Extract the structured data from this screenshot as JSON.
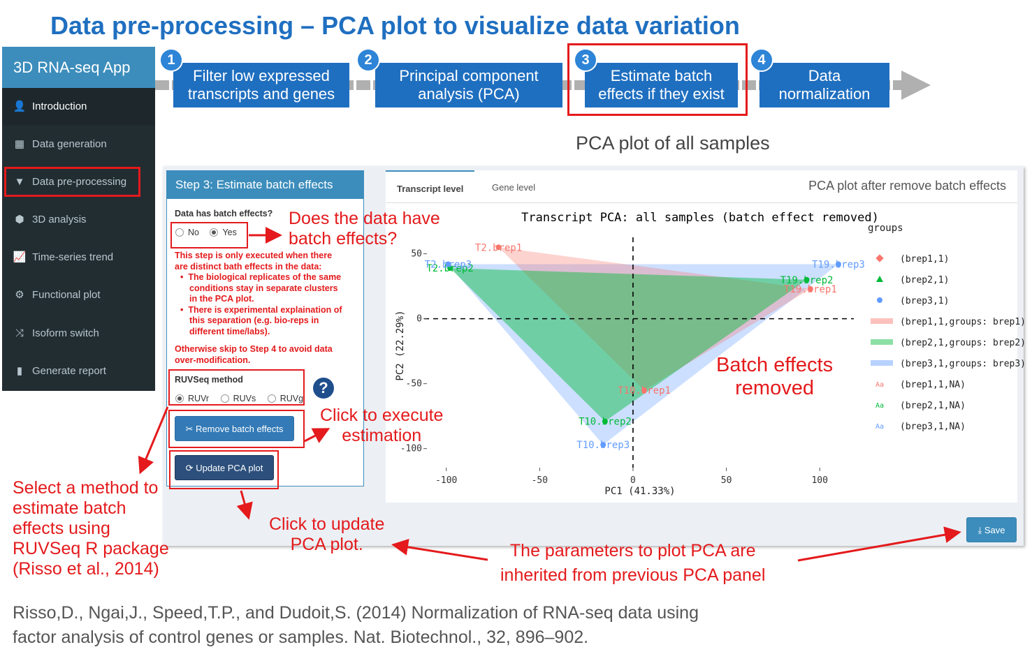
{
  "title": "Data pre-processing – PCA plot to visualize data variation",
  "sidebar": {
    "header": "3D RNA-seq App",
    "items": [
      {
        "label": "Introduction",
        "icon": "user-icon",
        "glyph": "👤"
      },
      {
        "label": "Data generation",
        "icon": "table-icon",
        "glyph": "▦"
      },
      {
        "label": "Data pre-processing",
        "icon": "filter-icon",
        "glyph": "▼"
      },
      {
        "label": "3D analysis",
        "icon": "cubes-icon",
        "glyph": "⬢"
      },
      {
        "label": "Time-series trend",
        "icon": "line-chart-icon",
        "glyph": "📈"
      },
      {
        "label": "Functional plot",
        "icon": "cogs-icon",
        "glyph": "⚙"
      },
      {
        "label": "Isoform switch",
        "icon": "random-icon",
        "glyph": "⤨"
      },
      {
        "label": "Generate report",
        "icon": "file-icon",
        "glyph": "▮"
      }
    ]
  },
  "steps": [
    {
      "num": "1",
      "line1": "Filter low expressed",
      "line2": "transcripts and genes"
    },
    {
      "num": "2",
      "line1": "Principal component",
      "line2": "analysis (PCA)"
    },
    {
      "num": "3",
      "line1": "Estimate batch",
      "line2": "effects if they exist"
    },
    {
      "num": "4",
      "line1": "Data",
      "line2": "normalization"
    }
  ],
  "pca_heading": "PCA plot of all samples",
  "left_panel": {
    "header": "Step 3: Estimate batch effects",
    "batch_question": "Data has batch effects?",
    "option_no": "No",
    "option_yes": "Yes",
    "info_1": "This step is only executed when there",
    "info_2": "are distinct bath effects in the data:",
    "bullet1_1": "The biological replicates of the same",
    "bullet1_2": "conditions stay in separate clusters",
    "bullet1_3": "in the PCA plot.",
    "bullet2_1": "There is experimental explaination of",
    "bullet2_2": "this separation (e.g. bio-reps in",
    "bullet2_3": "different time/labs).",
    "otherwise_1": "Otherwise skip to Step 4 to avoid data",
    "otherwise_2": "over-modification.",
    "method_label": "RUVSeq method",
    "methods": [
      "RUVr",
      "RUVs",
      "RUVg"
    ],
    "remove_button": "Remove batch effects",
    "update_button": "Update PCA plot",
    "help": "?"
  },
  "tabs": [
    "Transcript level",
    "Gene level"
  ],
  "panel_title": "PCA plot after remove batch effects",
  "save_button": "Save",
  "colors": {
    "brep1": "#f8766d",
    "brep2": "#00ba38",
    "brep3": "#619cff",
    "annotation": "#e41a1c",
    "step": "#1f6fc0"
  },
  "chart_data": {
    "type": "scatter",
    "title": "Transcript PCA: all samples (batch effect removed)",
    "xlabel": "PC1 (41.33%)",
    "ylabel": "PC2 (22.29%)",
    "xlim": [
      -110,
      122
    ],
    "ylim": [
      -112,
      60
    ],
    "x_ticks": [
      -100,
      -50,
      0,
      50,
      100
    ],
    "y_ticks": [
      50,
      0,
      -50,
      -100
    ],
    "x_tick_labels": [
      "-100",
      "-50",
      "0",
      "50",
      "100"
    ],
    "y_tick_labels": [
      "50",
      "0",
      "-50",
      "-100"
    ],
    "legend_title": "groups",
    "legend": [
      "(brep1,1)",
      "(brep2,1)",
      "(brep3,1)",
      "(brep1,1,groups: brep1)",
      "(brep2,1,groups: brep2)",
      "(brep3,1,groups: brep3)",
      "(brep1,1,NA)",
      "(brep2,1,NA)",
      "(brep3,1,NA)"
    ],
    "legend_symbol": "Aa",
    "series": [
      {
        "name": "brep1",
        "points": [
          {
            "label": "T2.brep1",
            "x": -72,
            "y": 55
          },
          {
            "label": "T19.brep1",
            "x": 95,
            "y": 23
          },
          {
            "label": "T10.brep1",
            "x": 6,
            "y": -55
          }
        ]
      },
      {
        "label_group": "brep2",
        "name": "brep2",
        "points": [
          {
            "label": "T2.brep2",
            "x": -98,
            "y": 39
          },
          {
            "label": "T19.brep2",
            "x": 93,
            "y": 30
          },
          {
            "label": "T10.brep2",
            "x": -15,
            "y": -79
          }
        ]
      },
      {
        "name": "brep3",
        "points": [
          {
            "label": "T2.brep3",
            "x": -99,
            "y": 42
          },
          {
            "label": "T19.brep3",
            "x": 110,
            "y": 42
          },
          {
            "label": "T10.brep3",
            "x": -16,
            "y": -97
          }
        ]
      }
    ],
    "reference_lines": {
      "x": 0,
      "y": 0,
      "style": "dashed"
    }
  },
  "annotations": {
    "batch_q_1": "Does the data have",
    "batch_q_2": "batch effects?",
    "execute_1": "Click to execute",
    "execute_2": "estimation",
    "removed_1": "Batch effects",
    "removed_2": "removed",
    "select_1": "Select a method to",
    "select_2": "estimate batch",
    "select_3": "effects using",
    "select_4": "RUVSeq R package",
    "select_5": "(Risso et al., 2014)",
    "update_1": "Click to update",
    "update_2": "PCA plot.",
    "inherit_1": "The parameters to plot PCA are",
    "inherit_2": "inherited from previous PCA panel"
  },
  "citation": {
    "line1": "Risso,D., Ngai,J., Speed,T.P., and Dudoit,S. (2014) Normalization of RNA-seq data using",
    "line2": "factor analysis of control genes or samples. Nat. Biotechnol., 32, 896–902."
  }
}
